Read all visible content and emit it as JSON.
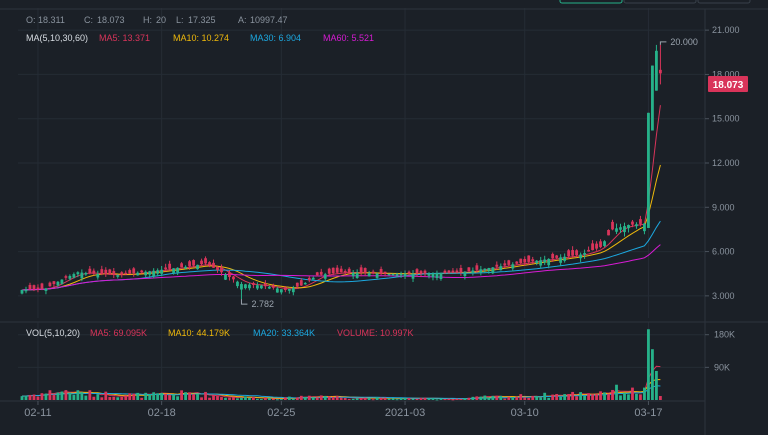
{
  "ohlc_bar": {
    "open_label": "O:",
    "open": "18.311",
    "close_label": "C:",
    "close": "18.073",
    "high_label": "H:",
    "high": "20",
    "low_label": "L:",
    "low": "17.325",
    "amount_label": "A:",
    "amount": "10997.47"
  },
  "ma_legend": {
    "title": "MA(5,10,30,60)",
    "items": [
      {
        "label": "MA5: 13.371",
        "color": "#d9345a"
      },
      {
        "label": "MA10: 10.274",
        "color": "#f0b90b"
      },
      {
        "label": "MA30: 6.904",
        "color": "#1ca8e0"
      },
      {
        "label": "MA60: 5.521",
        "color": "#d81bd4"
      }
    ]
  },
  "vol_legend": {
    "title": "VOL(5,10,20)",
    "items": [
      {
        "label": "MA5: 69.095K",
        "color": "#d9345a"
      },
      {
        "label": "MA10: 44.179K",
        "color": "#f0b90b"
      },
      {
        "label": "MA20: 33.364K",
        "color": "#1ca8e0"
      },
      {
        "label": "VOLUME: 10.997K",
        "color": "#d9345a"
      }
    ]
  },
  "price_axis": [
    "21.000",
    "18.000",
    "15.000",
    "12.000",
    "9.000",
    "6.000",
    "3.000"
  ],
  "volume_axis": [
    "180K",
    "90K"
  ],
  "date_axis": [
    "02-11",
    "02-18",
    "02-25",
    "2021-03",
    "03-10",
    "03-17"
  ],
  "high_marker": "20.000",
  "low_marker": "2.782",
  "last_price_tag": "18.073",
  "colors": {
    "up": "#26b28a",
    "down": "#d9345a",
    "background": "#1b2027",
    "text": "#8a939e"
  },
  "chart_data": {
    "type": "candlestick",
    "price_ylim": [
      1.5,
      22.5
    ],
    "volume_ylim": [
      0,
      215
    ],
    "volume_unit": "K",
    "date_ticks": [
      {
        "index": 4,
        "label": "02-11"
      },
      {
        "index": 35,
        "label": "02-18"
      },
      {
        "index": 65,
        "label": "02-25"
      },
      {
        "index": 96,
        "label": "2021-03"
      },
      {
        "index": 126,
        "label": "03-10"
      },
      {
        "index": 157,
        "label": "03-17"
      }
    ],
    "high_marker": {
      "index": 160,
      "value": 20.0
    },
    "low_marker": {
      "index": 55,
      "value": 2.782
    },
    "last_price": 18.073,
    "moving_averages": [
      {
        "name": "MA5",
        "current": 13.371
      },
      {
        "name": "MA10",
        "current": 10.274
      },
      {
        "name": "MA30",
        "current": 6.904
      },
      {
        "name": "MA60",
        "current": 5.521
      }
    ],
    "volume_averages": [
      {
        "name": "MA5",
        "current": "69.095K"
      },
      {
        "name": "MA10",
        "current": "44.179K"
      },
      {
        "name": "MA20",
        "current": "33.364K"
      }
    ],
    "keypoints": [
      {
        "i": 0,
        "p": 3.4,
        "v": 12
      },
      {
        "i": 6,
        "p": 3.5,
        "v": 20
      },
      {
        "i": 10,
        "p": 4.1,
        "v": 26
      },
      {
        "i": 14,
        "p": 4.6,
        "v": 20
      },
      {
        "i": 18,
        "p": 4.5,
        "v": 18
      },
      {
        "i": 24,
        "p": 4.4,
        "v": 16
      },
      {
        "i": 30,
        "p": 4.6,
        "v": 14
      },
      {
        "i": 36,
        "p": 4.8,
        "v": 15
      },
      {
        "i": 42,
        "p": 5.0,
        "v": 20
      },
      {
        "i": 46,
        "p": 5.2,
        "v": 16
      },
      {
        "i": 50,
        "p": 4.6,
        "v": 10
      },
      {
        "i": 55,
        "p": 3.8,
        "v": 8
      },
      {
        "i": 60,
        "p": 3.7,
        "v": 6
      },
      {
        "i": 66,
        "p": 3.4,
        "v": 5
      },
      {
        "i": 70,
        "p": 3.7,
        "v": 10
      },
      {
        "i": 74,
        "p": 4.4,
        "v": 14
      },
      {
        "i": 80,
        "p": 4.6,
        "v": 8
      },
      {
        "i": 90,
        "p": 4.5,
        "v": 5
      },
      {
        "i": 100,
        "p": 4.5,
        "v": 4
      },
      {
        "i": 110,
        "p": 4.6,
        "v": 4
      },
      {
        "i": 115,
        "p": 4.8,
        "v": 8
      },
      {
        "i": 122,
        "p": 5.1,
        "v": 10
      },
      {
        "i": 132,
        "p": 5.5,
        "v": 14
      },
      {
        "i": 140,
        "p": 5.8,
        "v": 18
      },
      {
        "i": 145,
        "p": 6.3,
        "v": 24
      },
      {
        "i": 148,
        "p": 7.5,
        "v": 30
      },
      {
        "i": 152,
        "p": 7.8,
        "v": 24
      },
      {
        "i": 156,
        "p": 7.9,
        "v": 26
      },
      {
        "i": 157,
        "p": 15.0,
        "v": 195
      },
      {
        "i": 158,
        "p": 17.5,
        "v": 140
      },
      {
        "i": 159,
        "p": 19.2,
        "v": 80
      },
      {
        "i": 160,
        "p": 18.1,
        "v": 11
      }
    ]
  }
}
